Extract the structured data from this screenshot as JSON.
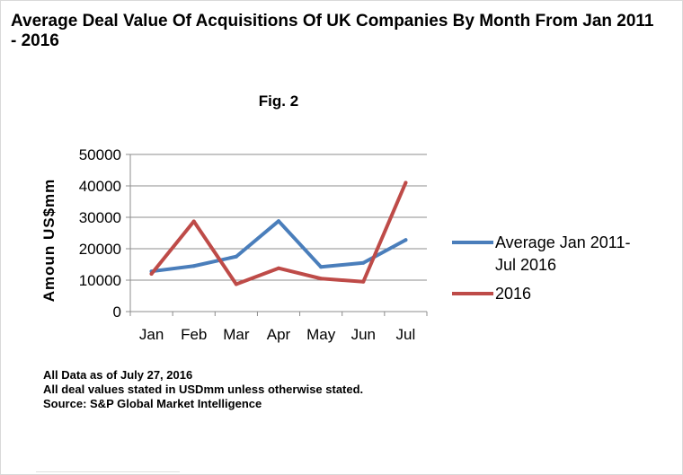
{
  "title": "Average Deal Value Of Acquisitions Of UK Companies By Month From Jan 2011 - 2016",
  "figure_label": "Fig. 2",
  "notes": [
    "All Data as of July 27, 2016",
    "All deal values stated in USDmm unless otherwise stated.",
    "Source: S&P Global Market Intelligence"
  ],
  "chart_data": {
    "type": "line",
    "categories": [
      "Jan",
      "Feb",
      "Mar",
      "Apr",
      "May",
      "Jun",
      "Jul"
    ],
    "ylabel": "Amoun US$mm",
    "ylim": [
      0,
      50000
    ],
    "yticks": [
      0,
      10000,
      20000,
      30000,
      40000,
      50000
    ],
    "grid": true,
    "legend_position": "right",
    "series": [
      {
        "name": "Average Jan 2011-Jul 2016",
        "legend_lines": [
          "Average Jan 2011-",
          "Jul 2016"
        ],
        "color": "#4a7ebb",
        "values": [
          12800,
          14500,
          17500,
          28800,
          14200,
          15500,
          22800
        ]
      },
      {
        "name": "2016",
        "legend_lines": [
          "2016"
        ],
        "color": "#be4b48",
        "values": [
          12000,
          28700,
          8700,
          13800,
          10500,
          9500,
          41000
        ]
      }
    ]
  }
}
